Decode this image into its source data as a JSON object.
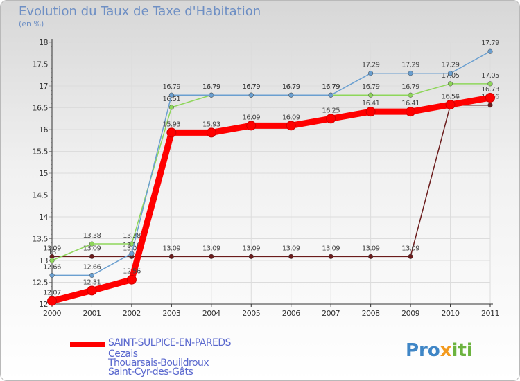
{
  "title": "Evolution du Taux de Taxe d'Habitation",
  "subtitle": "(en %)",
  "logo": {
    "p1": "Pro",
    "p2": "x",
    "p3": "iti"
  },
  "chart_data": {
    "type": "line",
    "x": [
      "2000",
      "2001",
      "2002",
      "2003",
      "2004",
      "2005",
      "2006",
      "2007",
      "2008",
      "2009",
      "2010",
      "2011"
    ],
    "ylim": [
      12,
      18
    ],
    "yticks": [
      "12",
      "12.5",
      "13",
      "13.5",
      "14",
      "14.5",
      "15",
      "15.5",
      "16",
      "16.5",
      "17",
      "17.5",
      "18"
    ],
    "series": [
      {
        "name": "Saint-Cyr-des-Gâts",
        "color": "#6b1c1c",
        "values": [
          13.09,
          13.09,
          13.09,
          13.09,
          13.09,
          13.09,
          13.09,
          13.09,
          13.09,
          13.09,
          16.56,
          16.56
        ],
        "labels": [
          "13.09",
          "13.09",
          "13.09",
          "13.09",
          "13.09",
          "13.09",
          "13.09",
          "13.09",
          "13.09",
          "13.09",
          "16.56",
          "16.56"
        ]
      },
      {
        "name": "Thouarsais-Bouildroux",
        "color": "#8ed65a",
        "values": [
          13.0,
          13.38,
          13.38,
          16.51,
          16.79,
          16.79,
          16.79,
          16.79,
          16.79,
          16.79,
          17.05,
          17.05
        ],
        "labels": [
          "13",
          "13.38",
          "13.38",
          "16.51",
          "16.79",
          "16.79",
          "16.79",
          "16.79",
          "16.79",
          "16.79",
          "17.05",
          "17.05"
        ]
      },
      {
        "name": "Cezais",
        "color": "#6a9fd0",
        "values": [
          12.66,
          12.66,
          13.16,
          16.79,
          16.79,
          16.79,
          16.79,
          16.79,
          17.29,
          17.29,
          17.29,
          17.79
        ],
        "labels": [
          "12.66",
          "12.66",
          "13.16",
          "16.79",
          "16.79",
          "16.79",
          "16.79",
          "16.79",
          "17.29",
          "17.29",
          "17.29",
          "17.79"
        ]
      },
      {
        "name": "SAINT-SULPICE-EN-PAREDS",
        "color": "#ff0000",
        "values": [
          12.07,
          12.31,
          12.56,
          15.93,
          15.93,
          16.09,
          16.09,
          16.25,
          16.41,
          16.41,
          16.57,
          16.73
        ],
        "labels": [
          "12.07",
          "12.31",
          "12.56",
          "15.93",
          "15.93",
          "16.09",
          "16.09",
          "16.25",
          "16.41",
          "16.41",
          "16.57",
          "16.73"
        ]
      }
    ],
    "legend": [
      "SAINT-SULPICE-EN-PAREDS",
      "Cezais",
      "Thouarsais-Bouildroux",
      "Saint-Cyr-des-Gâts"
    ]
  }
}
